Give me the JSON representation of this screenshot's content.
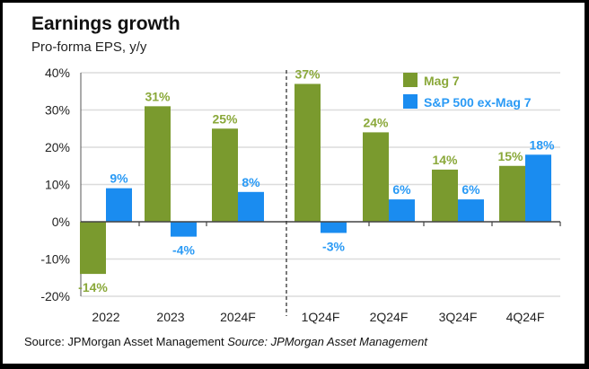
{
  "chart_data": {
    "type": "bar",
    "title": "Earnings growth",
    "subtitle": "Pro-forma EPS, y/y",
    "xlabel": "",
    "ylabel": "",
    "ylim": [
      -20,
      40
    ],
    "yticks": [
      "40%",
      "30%",
      "20%",
      "10%",
      "0%",
      "-10%",
      "-20%"
    ],
    "ytick_values": [
      40,
      30,
      20,
      10,
      0,
      -10,
      -20
    ],
    "grid": true,
    "legend_position": "top-right",
    "categories": [
      "2022",
      "2023",
      "2024F",
      "1Q24F",
      "2Q24F",
      "3Q24F",
      "4Q24F"
    ],
    "separator_after_index": 2,
    "series": [
      {
        "name": "Mag 7",
        "color": "#7a9a2e",
        "label_color": "#8aa83a",
        "values": [
          -14,
          31,
          25,
          37,
          24,
          14,
          15
        ],
        "labels": [
          "-14%",
          "31%",
          "25%",
          "37%",
          "24%",
          "14%",
          "15%"
        ]
      },
      {
        "name": "S&P 500 ex-Mag 7",
        "color": "#1a8cf0",
        "label_color": "#2a9af5",
        "values": [
          9,
          -4,
          8,
          -3,
          6,
          6,
          18
        ],
        "labels": [
          "9%",
          "-4%",
          "8%",
          "-3%",
          "6%",
          "6%",
          "18%"
        ]
      }
    ]
  },
  "source": {
    "text": "Source: JPMorgan Asset Management ",
    "italic_prefix": "Source:",
    "italic_rest": " JPMorgan Asset Management"
  }
}
